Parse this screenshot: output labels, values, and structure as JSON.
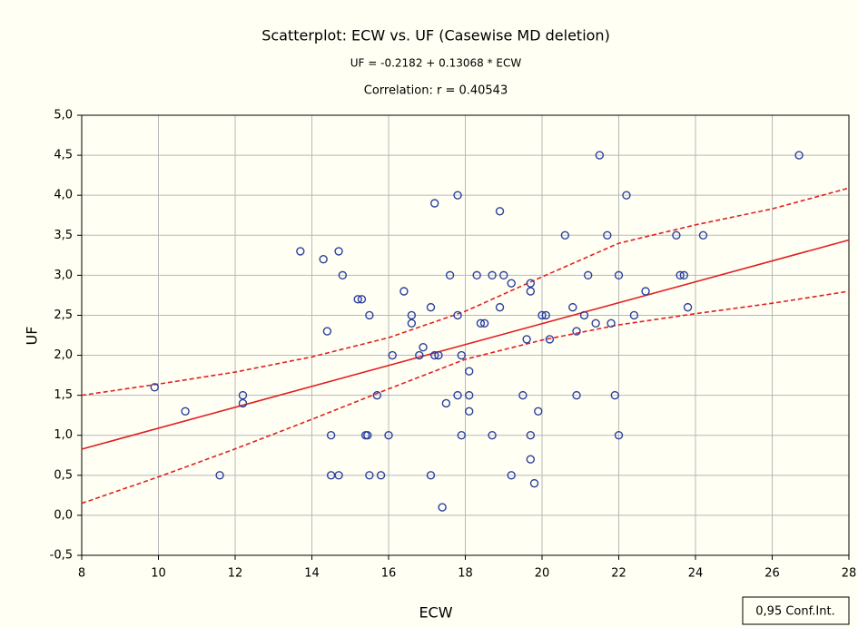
{
  "chart_data": {
    "type": "scatter",
    "title": "Scatterplot: ECW vs. UF (Casewise MD deletion)",
    "equation": "UF = -0.2182 + 0.13068 * ECW",
    "correlation": "Correlation: r = 0.40543",
    "x_label": "ECW",
    "y_label": "UF",
    "legend_label": "0,95 Conf.Int.",
    "point_color": "#2b3f9e",
    "line_color": "#e02020",
    "grid": true,
    "xlim": [
      8,
      28
    ],
    "ylim": [
      -0.5,
      5
    ],
    "xticks": [
      8,
      10,
      12,
      14,
      16,
      18,
      20,
      22,
      24,
      26,
      28
    ],
    "yticks": [
      {
        "value": -0.5,
        "label": "-0,5"
      },
      {
        "value": 0,
        "label": "0,0"
      },
      {
        "value": 0.5,
        "label": "0,5"
      },
      {
        "value": 1,
        "label": "1,0"
      },
      {
        "value": 1.5,
        "label": "1,5"
      },
      {
        "value": 2,
        "label": "2,0"
      },
      {
        "value": 2.5,
        "label": "2,5"
      },
      {
        "value": 3,
        "label": "3,0"
      },
      {
        "value": 3.5,
        "label": "3,5"
      },
      {
        "value": 4,
        "label": "4,0"
      },
      {
        "value": 4.5,
        "label": "4,5"
      },
      {
        "value": 5,
        "label": "5,0"
      }
    ],
    "x": [
      9.9,
      10.7,
      11.6,
      12.2,
      12.2,
      13.7,
      14.3,
      14.4,
      14.5,
      14.5,
      14.7,
      14.7,
      14.8,
      15.2,
      15.3,
      15.4,
      15.45,
      15.5,
      15.5,
      15.7,
      15.8,
      16.0,
      16.1,
      16.4,
      16.6,
      16.6,
      16.8,
      16.9,
      17.1,
      17.1,
      17.2,
      17.2,
      17.3,
      17.4,
      17.5,
      17.6,
      17.8,
      17.8,
      17.8,
      17.9,
      17.9,
      18.1,
      18.1,
      18.1,
      18.3,
      18.4,
      18.5,
      18.7,
      18.7,
      18.9,
      18.9,
      19.0,
      19.2,
      19.2,
      19.5,
      19.6,
      19.7,
      19.7,
      19.7,
      19.7,
      19.8,
      19.9,
      20.0,
      20.1,
      20.2,
      20.6,
      20.8,
      20.9,
      20.9,
      21.1,
      21.2,
      21.4,
      21.5,
      21.7,
      21.8,
      21.9,
      22.0,
      22.0,
      22.2,
      22.4,
      22.7,
      23.5,
      23.6,
      23.7,
      23.8,
      24.2,
      26.7
    ],
    "y": [
      1.6,
      1.3,
      0.5,
      1.5,
      1.4,
      3.3,
      3.2,
      2.3,
      1.0,
      0.5,
      3.3,
      0.5,
      3.0,
      2.7,
      2.7,
      1.0,
      1.0,
      2.5,
      0.5,
      1.5,
      0.5,
      1.0,
      2.0,
      2.8,
      2.5,
      2.4,
      2.0,
      2.1,
      2.6,
      0.5,
      2.0,
      3.9,
      2.0,
      0.1,
      1.4,
      3.0,
      4.0,
      2.5,
      1.5,
      1.0,
      2.0,
      1.8,
      1.5,
      1.3,
      3.0,
      2.4,
      2.4,
      3.0,
      1.0,
      3.8,
      2.6,
      3.0,
      2.9,
      0.5,
      1.5,
      2.2,
      2.9,
      2.8,
      1.0,
      0.7,
      0.4,
      1.3,
      2.5,
      2.5,
      2.2,
      3.5,
      2.6,
      2.3,
      1.5,
      2.5,
      3.0,
      2.4,
      4.5,
      3.5,
      2.4,
      1.5,
      3.0,
      1.0,
      4.0,
      2.5,
      2.8,
      3.5,
      3.0,
      3.0,
      2.6,
      3.5,
      4.5
    ],
    "fit": {
      "x": [
        8,
        28
      ],
      "y": [
        0.827,
        3.441
      ]
    },
    "band_x": [
      8,
      10,
      12,
      14,
      16,
      18,
      20,
      22,
      24,
      26,
      28
    ],
    "conf_upper": [
      1.5,
      1.64,
      1.79,
      1.98,
      2.22,
      2.55,
      2.98,
      3.4,
      3.63,
      3.83,
      4.09
    ],
    "conf_lower": [
      0.15,
      0.48,
      0.83,
      1.2,
      1.58,
      1.95,
      2.19,
      2.38,
      2.52,
      2.65,
      2.8
    ]
  }
}
